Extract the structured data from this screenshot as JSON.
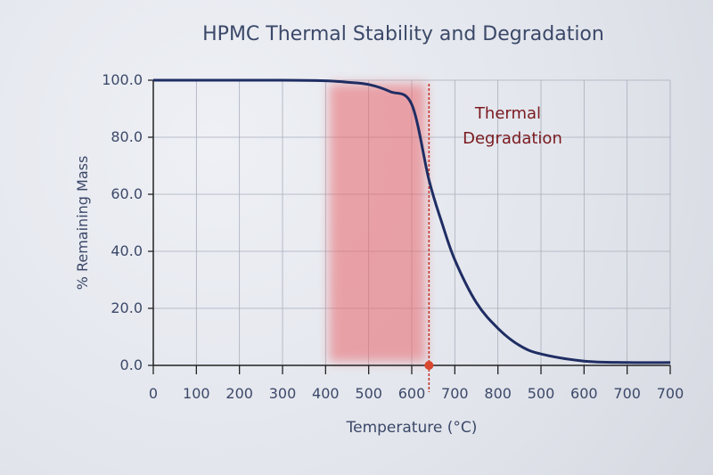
{
  "chart_data": {
    "type": "line",
    "title": "HPMC Thermal Stability and Degradation",
    "xlabel": "Temperature (°C)",
    "ylabel": "% Remaining Mass",
    "x_tick_labels": [
      "0",
      "100",
      "200",
      "300",
      "400",
      "500",
      "600",
      "700",
      "800",
      "500",
      "600",
      "700",
      "700"
    ],
    "y_ticks": [
      0,
      20,
      40,
      60,
      80,
      100
    ],
    "y_tick_labels": [
      "0.0",
      "20.0",
      "40.0",
      "60.0",
      "80.0",
      "100.0"
    ],
    "ylim": [
      0,
      100
    ],
    "grid": true,
    "series": [
      {
        "x": [
          0,
          300,
          400,
          450,
          500,
          550,
          600,
          640,
          670,
          700,
          750,
          800,
          850,
          900,
          1000,
          1100,
          1200
        ],
        "y": [
          100,
          100,
          99.8,
          99.3,
          98.5,
          96,
          91.5,
          65,
          50,
          37,
          22,
          13,
          7,
          4,
          1.5,
          1,
          1
        ],
        "color": "#1f2d63"
      }
    ],
    "shaded_region": {
      "x": [
        400,
        640
      ],
      "color": "#e8656a"
    },
    "marker_line": {
      "x": 640,
      "color": "#c8372d"
    },
    "annotation": {
      "lines": [
        "Thermal",
        "Degradation"
      ],
      "color": "#7a1a1f"
    }
  }
}
